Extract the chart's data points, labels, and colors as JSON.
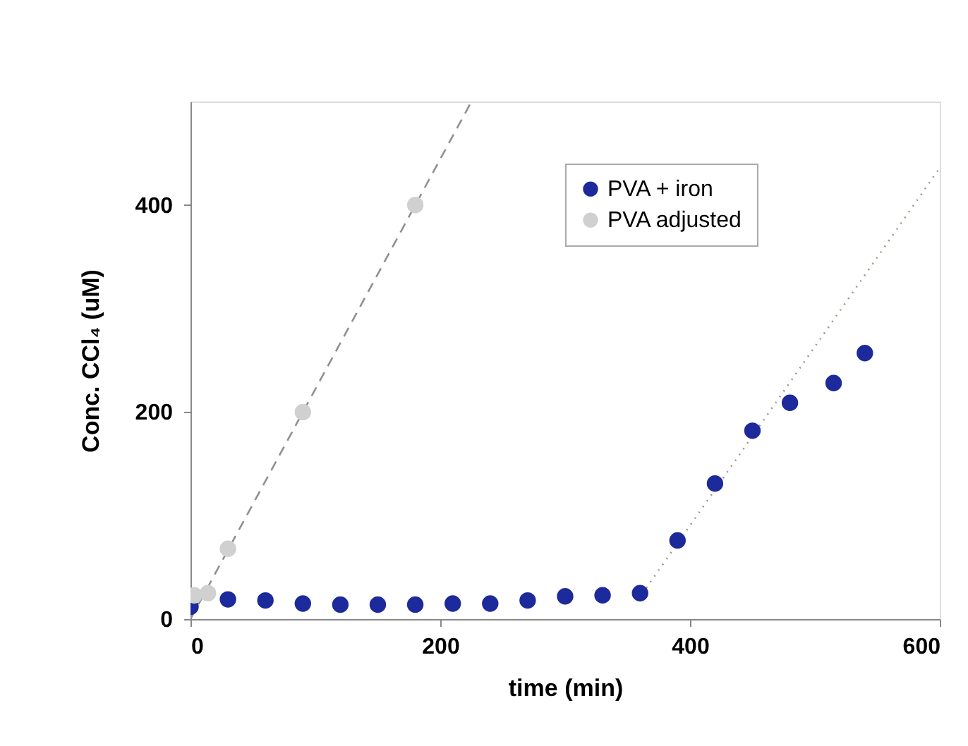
{
  "chart_data": {
    "type": "scatter",
    "xlabel": "time (min)",
    "ylabel": "Conc. CCl₄ (uM)",
    "xlim": [
      0,
      600
    ],
    "ylim": [
      0,
      500
    ],
    "xticks": [
      0,
      200,
      400,
      600
    ],
    "yticks": [
      0,
      200,
      400
    ],
    "grid": false,
    "legend": "top right",
    "series": [
      {
        "type": "line",
        "line_style": "dashed",
        "marker": "none",
        "color": "#909090",
        "x": [
          0,
          225
        ],
        "values": [
          0,
          500
        ]
      },
      {
        "type": "line",
        "line_style": "dotted",
        "marker": "none",
        "color": "#a09880",
        "x": [
          365,
          600
        ],
        "values": [
          30,
          436
        ]
      },
      {
        "name": "PVA + iron",
        "color": "#1c2a9c",
        "marker": "circle",
        "x": [
          0,
          30,
          60,
          90,
          120,
          150,
          180,
          210,
          240,
          270,
          300,
          330,
          360,
          390,
          420,
          450,
          480,
          515,
          540
        ],
        "values": [
          12,
          19,
          18,
          15,
          14,
          14,
          14,
          15,
          15,
          18,
          22,
          23,
          25,
          76,
          131,
          182,
          209,
          228,
          257
        ]
      },
      {
        "name": "PVA adjusted",
        "color": "#d0d0d0",
        "marker": "circle",
        "x": [
          3,
          14,
          30,
          90,
          180
        ],
        "values": [
          23,
          25,
          68,
          200,
          400
        ]
      }
    ]
  }
}
